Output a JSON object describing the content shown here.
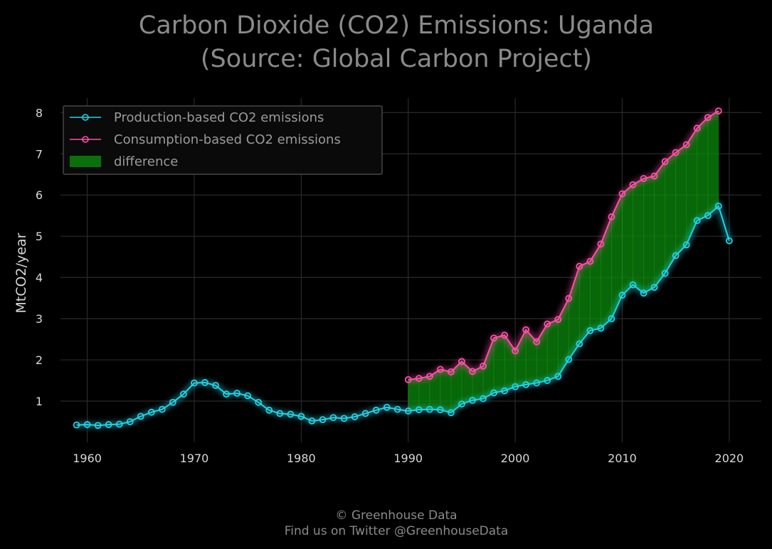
{
  "chart_data": {
    "type": "line",
    "title_line1": "Carbon Dioxide (CO2) Emissions: Uganda",
    "title_line2": "(Source: Global Carbon Project)",
    "ylabel": "MtCO2/year",
    "xlabel": "",
    "xlim": [
      1957.5,
      2023
    ],
    "ylim": [
      0,
      8.35
    ],
    "x_ticks": [
      1960,
      1970,
      1980,
      1990,
      2000,
      2010,
      2020
    ],
    "y_ticks": [
      1,
      2,
      3,
      4,
      5,
      6,
      7,
      8
    ],
    "grid": true,
    "legend_position": "top-left",
    "colors": {
      "production": "#22d3e6",
      "consumption": "#ff4fa8",
      "difference": "#0b8a0b",
      "background": "#000000"
    },
    "series": [
      {
        "name": "Production-based CO2 emissions",
        "x": [
          1959,
          1960,
          1961,
          1962,
          1963,
          1964,
          1965,
          1966,
          1967,
          1968,
          1969,
          1970,
          1971,
          1972,
          1973,
          1974,
          1975,
          1976,
          1977,
          1978,
          1979,
          1980,
          1981,
          1982,
          1983,
          1984,
          1985,
          1986,
          1987,
          1988,
          1989,
          1990,
          1991,
          1992,
          1993,
          1994,
          1995,
          1996,
          1997,
          1998,
          1999,
          2000,
          2001,
          2002,
          2003,
          2004,
          2005,
          2006,
          2007,
          2008,
          2009,
          2010,
          2011,
          2012,
          2013,
          2014,
          2015,
          2016,
          2017,
          2018,
          2019,
          2020
        ],
        "values": [
          0.42,
          0.43,
          0.41,
          0.43,
          0.44,
          0.5,
          0.63,
          0.73,
          0.8,
          0.97,
          1.17,
          1.44,
          1.45,
          1.38,
          1.17,
          1.19,
          1.13,
          0.97,
          0.78,
          0.7,
          0.68,
          0.63,
          0.52,
          0.55,
          0.6,
          0.58,
          0.62,
          0.7,
          0.78,
          0.85,
          0.8,
          0.76,
          0.79,
          0.8,
          0.79,
          0.72,
          0.93,
          1.02,
          1.06,
          1.2,
          1.25,
          1.35,
          1.4,
          1.44,
          1.5,
          1.6,
          2.01,
          2.39,
          2.71,
          2.77,
          3.0,
          3.57,
          3.82,
          3.62,
          3.76,
          4.1,
          4.53,
          4.79,
          5.38,
          5.5,
          5.73,
          4.89
        ]
      },
      {
        "name": "Consumption-based CO2 emissions",
        "x": [
          1990,
          1991,
          1992,
          1993,
          1994,
          1995,
          1996,
          1997,
          1998,
          1999,
          2000,
          2001,
          2002,
          2003,
          2004,
          2005,
          2006,
          2007,
          2008,
          2009,
          2010,
          2011,
          2012,
          2013,
          2014,
          2015,
          2016,
          2017,
          2018,
          2019
        ],
        "values": [
          1.52,
          1.55,
          1.6,
          1.77,
          1.71,
          1.96,
          1.72,
          1.85,
          2.53,
          2.6,
          2.22,
          2.73,
          2.44,
          2.87,
          2.98,
          3.49,
          4.27,
          4.39,
          4.81,
          5.47,
          6.03,
          6.25,
          6.4,
          6.46,
          6.81,
          7.03,
          7.22,
          7.62,
          7.88,
          8.04
        ]
      }
    ],
    "difference_label": "difference"
  },
  "footer": {
    "line1": "© Greenhouse Data",
    "line2": "Find us on Twitter @GreenhouseData"
  }
}
